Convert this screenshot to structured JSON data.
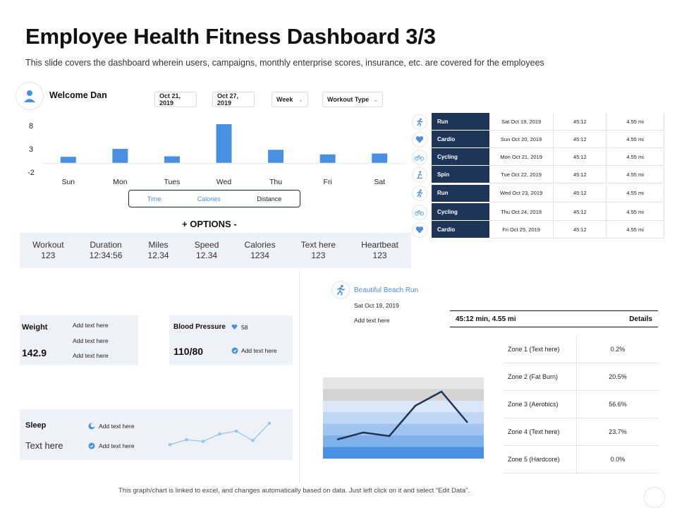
{
  "page": {
    "title": "Employee Health Fitness Dashboard 3/3",
    "subtitle": "This slide covers the dashboard wherein users, campaigns, monthly enterprise scores, insurance, etc. are covered for the employees"
  },
  "welcome": "Welcome Dan",
  "filters": {
    "from": "Oct 21, 2019",
    "to": "Oct 27, 2019",
    "period": "Week",
    "type": "Workout Type"
  },
  "chart_data": {
    "type": "bar",
    "categories": [
      "Sun",
      "Mon",
      "Tues",
      "Wed",
      "Thu",
      "Fri",
      "Sat"
    ],
    "values": [
      1.3,
      3.0,
      1.4,
      8.3,
      2.8,
      1.8,
      2.0
    ],
    "ylim": [
      -2,
      8
    ],
    "yticks": [
      8,
      3,
      -2
    ],
    "color": "#4a90e2"
  },
  "metric_tabs": {
    "time": "Time",
    "calories": "Calories",
    "distance": "Distance"
  },
  "options_label": "+ OPTIONS -",
  "stats": [
    {
      "label": "Workout",
      "value": "123"
    },
    {
      "label": "Duration",
      "value": "12:34:56"
    },
    {
      "label": "Miles",
      "value": "12.34"
    },
    {
      "label": "Speed",
      "value": "12.34"
    },
    {
      "label": "Calories",
      "value": "1234"
    },
    {
      "label": "Text here",
      "value": "123"
    },
    {
      "label": "Heartbeat",
      "value": "123"
    }
  ],
  "schedule": [
    {
      "activity": "Run",
      "date": "Sat Oct 19, 2019",
      "time": "45:12",
      "distance": "4.55 mi",
      "icon": "run-icon"
    },
    {
      "activity": "Cardio",
      "date": "Sun Oct 20, 2019",
      "time": "45:12",
      "distance": "4.55 mi",
      "icon": "heart-icon"
    },
    {
      "activity": "Cycling",
      "date": "Mon Oct 21, 2019",
      "time": "45:12",
      "distance": "4.55 mi",
      "icon": "bike-icon"
    },
    {
      "activity": "Spin",
      "date": "Tue Oct 22, 2019",
      "time": "45:12",
      "distance": "4.55 mi",
      "icon": "spin-icon"
    },
    {
      "activity": "Run",
      "date": "Wed Oct 23, 2019",
      "time": "45:12",
      "distance": "4.55 mi",
      "icon": "run-icon"
    },
    {
      "activity": "Cycling",
      "date": "Thu Oct 24, 2019",
      "time": "45:12",
      "distance": "4.55 mi",
      "icon": "bike-icon"
    },
    {
      "activity": "Cardio",
      "date": "Fri Oct 25, 2019",
      "time": "45:12",
      "distance": "4.55 mi",
      "icon": "heart-icon"
    }
  ],
  "weight": {
    "label": "Weight",
    "value": "142.9",
    "notes": [
      "Add text here",
      "Add text here",
      "Add text here"
    ]
  },
  "blood_pressure": {
    "label": "Blood Pressure",
    "pulse": "58",
    "value": "110/80",
    "note": "Add text here"
  },
  "sleep": {
    "label": "Sleep",
    "text": "Text here",
    "notes": [
      "Add text here",
      "Add text here"
    ],
    "trend": [
      1,
      2.2,
      1.8,
      3.6,
      4.3,
      2.0,
      6.2
    ]
  },
  "run": {
    "title": "Beautiful Beach Run",
    "date": "Sat Oct 19, 2019",
    "note": "Add text here",
    "summary": "45:12 min,  4.55 mi",
    "details": "Details",
    "zones": [
      {
        "name": "Zone 1 (Text here)",
        "value": "0.2%"
      },
      {
        "name": "Zone 2  (Fat Burn)",
        "value": "20.5%"
      },
      {
        "name": "Zone 3 (Aerobics)",
        "value": "56.6%"
      },
      {
        "name": "Zone 4 (Text here)",
        "value": "23.7%"
      },
      {
        "name": "Zone 5  (Hardcore)",
        "value": "0.0%"
      }
    ],
    "heart_trend": [
      2,
      3,
      2.5,
      6.8,
      8.8,
      4.4
    ]
  },
  "footer": "This graph/chart is linked to excel, and changes automatically based on data. Just left click on it and select “Edit Data”."
}
